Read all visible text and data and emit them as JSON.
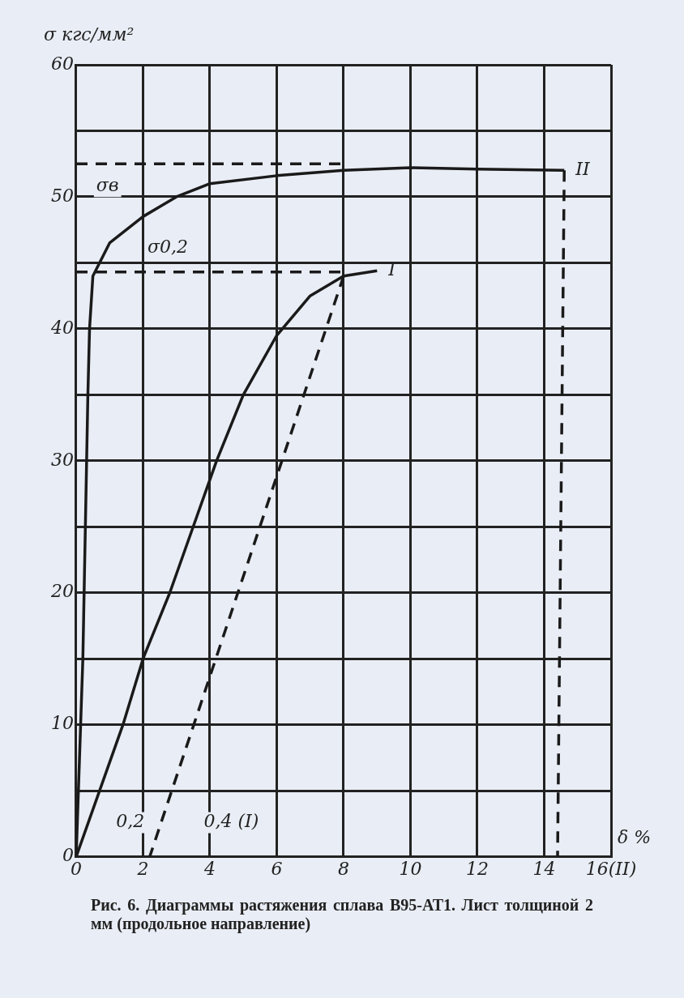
{
  "chart_data": {
    "type": "line",
    "ylabel": "σ кгс/мм²",
    "xlabel": "δ %",
    "xlim": [
      0,
      16
    ],
    "ylim": [
      0,
      60
    ],
    "xticks": [
      0,
      2,
      4,
      6,
      8,
      10,
      12,
      14,
      {
        "value": 16,
        "label": "16(II)"
      }
    ],
    "yticks": [
      0,
      {
        "value": 5,
        "label": null
      },
      10,
      {
        "value": 15,
        "label": null
      },
      20,
      {
        "value": 25,
        "label": null
      },
      30,
      {
        "value": 35,
        "label": null
      },
      40,
      {
        "value": 45,
        "label": null
      },
      50,
      {
        "value": 55,
        "label": null
      },
      60
    ],
    "grid": true,
    "legend": false,
    "marker": "none",
    "series": [
      {
        "name": "II",
        "color": "#1a1a1a",
        "line_style": "solid",
        "x": [
          0,
          0.2,
          0.35,
          0.4,
          0.5,
          1,
          1.5,
          2,
          3,
          4,
          6,
          8,
          10,
          12,
          14.6
        ],
        "values": [
          0,
          15,
          35,
          40,
          44,
          46.5,
          47.5,
          48.5,
          50,
          51,
          51.6,
          52,
          52.2,
          52.1,
          52
        ]
      },
      {
        "name": "I",
        "color": "#1a1a1a",
        "line_style": "solid",
        "x": [
          0,
          1.4,
          2,
          2.8,
          3.5,
          4.2,
          5,
          6,
          7,
          8,
          9
        ],
        "values": [
          0,
          10,
          15,
          20,
          25,
          30,
          35,
          39.5,
          42.5,
          44,
          44.4
        ]
      },
      {
        "color": "#1a1a1a",
        "line_style": "dashed",
        "x": [
          14.6,
          14.4
        ],
        "values": [
          52,
          0
        ]
      },
      {
        "color": "#1a1a1a",
        "line_style": "dashed",
        "x": [
          8,
          2.2
        ],
        "values": [
          44,
          0
        ]
      },
      {
        "color": "#1a1a1a",
        "line_style": "dashed",
        "x": [
          0,
          8
        ],
        "values": [
          44.3,
          44.3
        ]
      },
      {
        "color": "#1a1a1a",
        "line_style": "dashed",
        "x": [
          0,
          8
        ],
        "values": [
          52.5,
          52.5
        ]
      }
    ],
    "annotations": [
      {
        "text": "σв",
        "x": 0.6,
        "y": 52.5
      },
      {
        "text": "σ0,2",
        "x": 2.4,
        "y": 44.3
      },
      {
        "text": "0,2",
        "x": 2.2,
        "y": 0
      },
      "0,4 (I)",
      "Рис. 6. Диаграммы растяжения сплава В95-АТ1. Лист толщиной 2 мм (продольное направление)"
    ]
  }
}
